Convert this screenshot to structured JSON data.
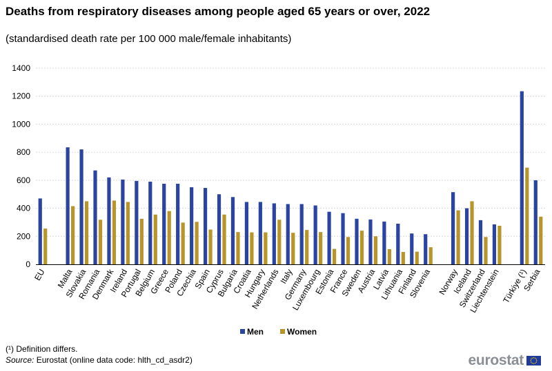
{
  "title": "Deaths from respiratory diseases among people aged 65 years or over, 2022",
  "subtitle": "(standardised death rate per 100 000 male/female inhabitants)",
  "footnote": "(¹) Definition differs.",
  "source_label": "Source:",
  "source_text": "Eurostat (online data code: hlth_cd_asdr2)",
  "logo_text": "eurostat",
  "colors": {
    "men": "#2a44a0",
    "women": "#b8952b",
    "grid": "#d9d9d9",
    "eu_flag": "#1f3c9c",
    "eu_star": "#ffd700"
  },
  "chart_data": {
    "type": "bar",
    "title": "Deaths from respiratory diseases among people aged 65 years or over, 2022",
    "xlabel": "",
    "ylabel": "",
    "ylim": [
      0,
      1400
    ],
    "yticks": [
      0,
      200,
      400,
      600,
      800,
      1000,
      1200,
      1400
    ],
    "grid": true,
    "legend": "bottom-center",
    "categories": [
      "EU",
      "",
      "Malta",
      "Slovakia",
      "Romania",
      "Denmark",
      "Ireland",
      "Portugal",
      "Belgium",
      "Greece",
      "Poland",
      "Czechia",
      "Spain",
      "Cyprus",
      "Bulgaria",
      "Croatia",
      "Hungary",
      "Netherlands",
      "Italy",
      "Germany",
      "Luxembourg",
      "Estonia",
      "France",
      "Sweden",
      "Austria",
      "Latvia",
      "Lithuania",
      "Finland",
      "Slovenia",
      "",
      "Norway",
      "Iceland",
      "Switzerland",
      "Liechtenstein",
      "",
      "Türkiye (¹)",
      "Serbia"
    ],
    "series": [
      {
        "name": "Men",
        "values": [
          470,
          null,
          835,
          820,
          670,
          620,
          605,
          595,
          590,
          575,
          575,
          550,
          545,
          500,
          480,
          445,
          445,
          435,
          430,
          430,
          420,
          375,
          365,
          325,
          320,
          305,
          290,
          220,
          215,
          null,
          515,
          400,
          315,
          285,
          null,
          1235,
          600
        ]
      },
      {
        "name": "Women",
        "values": [
          255,
          null,
          415,
          450,
          318,
          455,
          445,
          325,
          355,
          380,
          298,
          303,
          248,
          355,
          230,
          228,
          228,
          318,
          225,
          245,
          230,
          110,
          195,
          240,
          200,
          108,
          88,
          90,
          122,
          null,
          385,
          450,
          195,
          275,
          null,
          690,
          340
        ]
      }
    ]
  }
}
